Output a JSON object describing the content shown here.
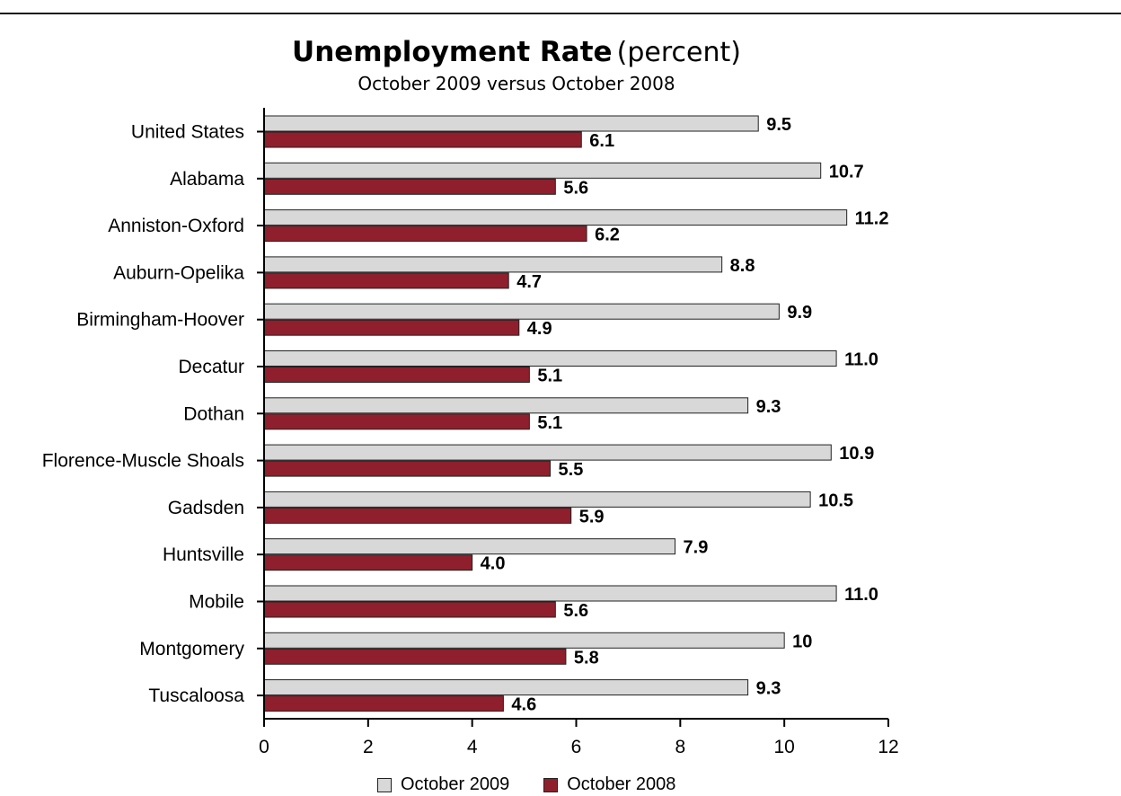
{
  "chart_data": {
    "type": "bar",
    "orientation": "horizontal",
    "title": "Unemployment Rate",
    "title_unit": "(percent)",
    "subtitle": "October 2009 versus October 2008",
    "categories": [
      "United States",
      "Alabama",
      "Anniston-Oxford",
      "Auburn-Opelika",
      "Birmingham-Hoover",
      "Decatur",
      "Dothan",
      "Florence-Muscle Shoals",
      "Gadsden",
      "Huntsville",
      "Mobile",
      "Montgomery",
      "Tuscaloosa"
    ],
    "series": [
      {
        "name": "October 2009",
        "color": "#d8d8d8",
        "values": [
          9.5,
          10.7,
          11.2,
          8.8,
          9.9,
          11.0,
          9.3,
          10.9,
          10.5,
          7.9,
          11.0,
          10,
          9.3
        ],
        "labels": [
          "9.5",
          "10.7",
          "11.2",
          "8.8",
          "9.9",
          "11.0",
          "9.3",
          "10.9",
          "10.5",
          "7.9",
          "11.0",
          "10",
          "9.3"
        ]
      },
      {
        "name": "October 2008",
        "color": "#8f1f2c",
        "values": [
          6.1,
          5.6,
          6.2,
          4.7,
          4.9,
          5.1,
          5.1,
          5.5,
          5.9,
          4.0,
          5.6,
          5.8,
          4.6
        ],
        "labels": [
          "6.1",
          "5.6",
          "6.2",
          "4.7",
          "4.9",
          "5.1",
          "5.1",
          "5.5",
          "5.9",
          "4.0",
          "5.6",
          "5.8",
          "4.6"
        ]
      }
    ],
    "xlim": [
      0,
      12
    ],
    "xticks": [
      "0",
      "2",
      "4",
      "6",
      "8",
      "10",
      "12"
    ],
    "grid": false,
    "legend_position": "bottom"
  }
}
